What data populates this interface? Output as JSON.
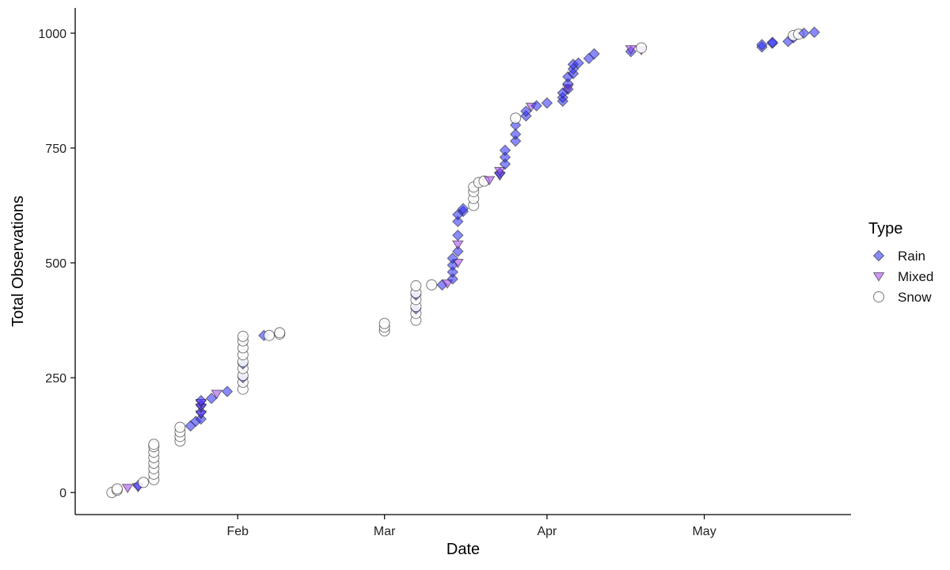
{
  "chart_data": {
    "type": "scatter",
    "xlabel": "Date",
    "ylabel": "Total Observations",
    "xlim": [
      "2019-01-01",
      "2019-05-29"
    ],
    "ylim": [
      -48,
      1055
    ],
    "x_ticks": [
      {
        "date": "2019-02-01",
        "label": "Feb"
      },
      {
        "date": "2019-03-01",
        "label": "Mar"
      },
      {
        "date": "2019-04-01",
        "label": "Apr"
      },
      {
        "date": "2019-05-01",
        "label": "May"
      }
    ],
    "y_ticks": [
      0,
      250,
      500,
      750,
      1000
    ],
    "grid": false,
    "legend": {
      "title": "Type",
      "placement": "right",
      "entries": [
        {
          "name": "Rain",
          "shape": "diamond",
          "color": "#3333ff"
        },
        {
          "name": "Mixed",
          "shape": "triangle-down",
          "color": "#a040f0"
        },
        {
          "name": "Snow",
          "shape": "circle",
          "color": "#ffffff"
        }
      ]
    },
    "points": [
      [
        "2019-01-08",
        0,
        "Snow"
      ],
      [
        "2019-01-09",
        5,
        "Snow"
      ],
      [
        "2019-01-09",
        8,
        "Snow"
      ],
      [
        "2019-01-11",
        10,
        "Mixed"
      ],
      [
        "2019-01-13",
        12,
        "Mixed"
      ],
      [
        "2019-01-13",
        15,
        "Rain"
      ],
      [
        "2019-01-14",
        22,
        "Snow"
      ],
      [
        "2019-01-16",
        28,
        "Snow"
      ],
      [
        "2019-01-16",
        40,
        "Snow"
      ],
      [
        "2019-01-16",
        52,
        "Snow"
      ],
      [
        "2019-01-16",
        64,
        "Snow"
      ],
      [
        "2019-01-16",
        76,
        "Snow"
      ],
      [
        "2019-01-16",
        88,
        "Snow"
      ],
      [
        "2019-01-16",
        100,
        "Snow"
      ],
      [
        "2019-01-16",
        105,
        "Snow"
      ],
      [
        "2019-01-21",
        112,
        "Snow"
      ],
      [
        "2019-01-21",
        122,
        "Snow"
      ],
      [
        "2019-01-21",
        132,
        "Snow"
      ],
      [
        "2019-01-21",
        142,
        "Snow"
      ],
      [
        "2019-01-23",
        145,
        "Rain"
      ],
      [
        "2019-01-24",
        155,
        "Rain"
      ],
      [
        "2019-01-25",
        160,
        "Rain"
      ],
      [
        "2019-01-25",
        170,
        "Mixed"
      ],
      [
        "2019-01-25",
        175,
        "Rain"
      ],
      [
        "2019-01-25",
        185,
        "Mixed"
      ],
      [
        "2019-01-25",
        190,
        "Rain"
      ],
      [
        "2019-01-25",
        195,
        "Mixed"
      ],
      [
        "2019-01-25",
        200,
        "Rain"
      ],
      [
        "2019-01-27",
        205,
        "Rain"
      ],
      [
        "2019-01-28",
        215,
        "Mixed"
      ],
      [
        "2019-01-30",
        220,
        "Rain"
      ],
      [
        "2019-02-02",
        225,
        "Snow"
      ],
      [
        "2019-02-02",
        240,
        "Snow"
      ],
      [
        "2019-02-02",
        250,
        "Rain"
      ],
      [
        "2019-02-02",
        255,
        "Snow"
      ],
      [
        "2019-02-02",
        270,
        "Snow"
      ],
      [
        "2019-02-02",
        280,
        "Rain"
      ],
      [
        "2019-02-02",
        285,
        "Snow"
      ],
      [
        "2019-02-02",
        300,
        "Snow"
      ],
      [
        "2019-02-02",
        315,
        "Snow"
      ],
      [
        "2019-02-02",
        330,
        "Snow"
      ],
      [
        "2019-02-02",
        340,
        "Snow"
      ],
      [
        "2019-02-06",
        342,
        "Rain"
      ],
      [
        "2019-02-07",
        342,
        "Snow"
      ],
      [
        "2019-02-09",
        345,
        "Snow"
      ],
      [
        "2019-02-09",
        348,
        "Snow"
      ],
      [
        "2019-03-01",
        352,
        "Snow"
      ],
      [
        "2019-03-01",
        360,
        "Snow"
      ],
      [
        "2019-03-01",
        368,
        "Snow"
      ],
      [
        "2019-03-07",
        375,
        "Snow"
      ],
      [
        "2019-03-07",
        390,
        "Snow"
      ],
      [
        "2019-03-07",
        400,
        "Rain"
      ],
      [
        "2019-03-07",
        405,
        "Snow"
      ],
      [
        "2019-03-07",
        420,
        "Snow"
      ],
      [
        "2019-03-07",
        430,
        "Rain"
      ],
      [
        "2019-03-07",
        435,
        "Snow"
      ],
      [
        "2019-03-07",
        450,
        "Snow"
      ],
      [
        "2019-03-10",
        452,
        "Snow"
      ],
      [
        "2019-03-12",
        452,
        "Rain"
      ],
      [
        "2019-03-13",
        455,
        "Mixed"
      ],
      [
        "2019-03-14",
        465,
        "Rain"
      ],
      [
        "2019-03-14",
        480,
        "Rain"
      ],
      [
        "2019-03-14",
        495,
        "Rain"
      ],
      [
        "2019-03-15",
        500,
        "Mixed"
      ],
      [
        "2019-03-14",
        510,
        "Rain"
      ],
      [
        "2019-03-15",
        525,
        "Rain"
      ],
      [
        "2019-03-15",
        540,
        "Mixed"
      ],
      [
        "2019-03-15",
        560,
        "Rain"
      ],
      [
        "2019-03-15",
        590,
        "Rain"
      ],
      [
        "2019-03-15",
        605,
        "Rain"
      ],
      [
        "2019-03-16",
        612,
        "Rain"
      ],
      [
        "2019-03-16",
        618,
        "Rain"
      ],
      [
        "2019-03-18",
        625,
        "Snow"
      ],
      [
        "2019-03-18",
        640,
        "Snow"
      ],
      [
        "2019-03-18",
        655,
        "Snow"
      ],
      [
        "2019-03-18",
        665,
        "Snow"
      ],
      [
        "2019-03-19",
        675,
        "Snow"
      ],
      [
        "2019-03-20",
        678,
        "Snow"
      ],
      [
        "2019-03-21",
        680,
        "Mixed"
      ],
      [
        "2019-03-23",
        690,
        "Mixed"
      ],
      [
        "2019-03-23",
        695,
        "Rain"
      ],
      [
        "2019-03-23",
        700,
        "Mixed"
      ],
      [
        "2019-03-24",
        715,
        "Rain"
      ],
      [
        "2019-03-24",
        730,
        "Rain"
      ],
      [
        "2019-03-24",
        745,
        "Rain"
      ],
      [
        "2019-03-26",
        765,
        "Rain"
      ],
      [
        "2019-03-26",
        780,
        "Rain"
      ],
      [
        "2019-03-26",
        800,
        "Rain"
      ],
      [
        "2019-03-26",
        815,
        "Snow"
      ],
      [
        "2019-03-28",
        820,
        "Rain"
      ],
      [
        "2019-03-28",
        830,
        "Rain"
      ],
      [
        "2019-03-29",
        840,
        "Mixed"
      ],
      [
        "2019-03-30",
        842,
        "Rain"
      ],
      [
        "2019-04-01",
        848,
        "Rain"
      ],
      [
        "2019-04-04",
        852,
        "Rain"
      ],
      [
        "2019-04-04",
        860,
        "Rain"
      ],
      [
        "2019-04-04",
        870,
        "Rain"
      ],
      [
        "2019-04-05",
        878,
        "Rain"
      ],
      [
        "2019-04-05",
        880,
        "Mixed"
      ],
      [
        "2019-04-05",
        890,
        "Rain"
      ],
      [
        "2019-04-05",
        905,
        "Rain"
      ],
      [
        "2019-04-06",
        912,
        "Rain"
      ],
      [
        "2019-04-06",
        922,
        "Rain"
      ],
      [
        "2019-04-06",
        932,
        "Rain"
      ],
      [
        "2019-04-07",
        935,
        "Rain"
      ],
      [
        "2019-04-09",
        945,
        "Rain"
      ],
      [
        "2019-04-10",
        955,
        "Rain"
      ],
      [
        "2019-04-17",
        960,
        "Rain"
      ],
      [
        "2019-04-17",
        965,
        "Mixed"
      ],
      [
        "2019-04-19",
        963,
        "Mixed"
      ],
      [
        "2019-04-19",
        968,
        "Snow"
      ],
      [
        "2019-05-12",
        970,
        "Rain"
      ],
      [
        "2019-05-12",
        975,
        "Rain"
      ],
      [
        "2019-05-14",
        978,
        "Rain"
      ],
      [
        "2019-05-14",
        980,
        "Rain"
      ],
      [
        "2019-05-17",
        982,
        "Rain"
      ],
      [
        "2019-05-18",
        990,
        "Rain"
      ],
      [
        "2019-05-18",
        995,
        "Snow"
      ],
      [
        "2019-05-19",
        998,
        "Snow"
      ],
      [
        "2019-05-20",
        1000,
        "Rain"
      ],
      [
        "2019-05-22",
        1002,
        "Rain"
      ]
    ]
  }
}
